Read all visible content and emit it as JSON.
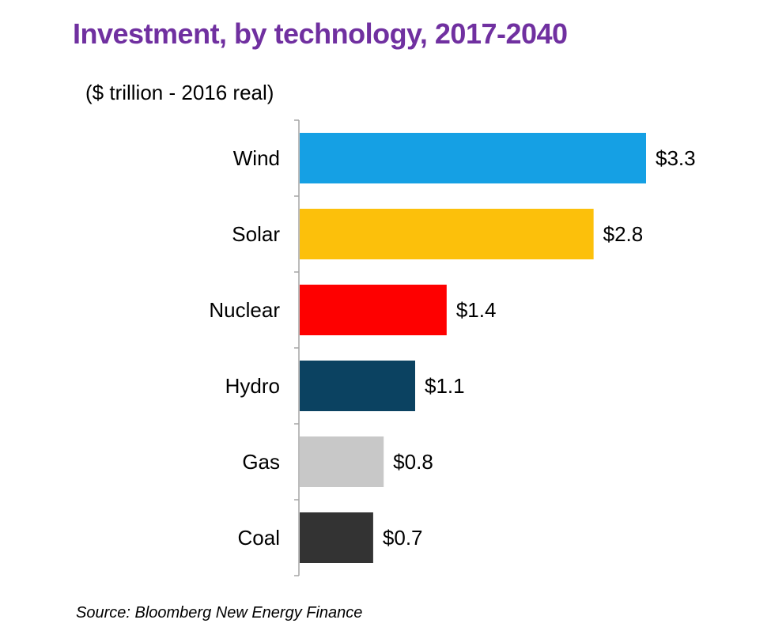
{
  "title_color": "#7030a0",
  "chart_data": {
    "type": "bar",
    "orientation": "horizontal",
    "title": "Investment, by technology, 2017-2040",
    "unit_label": "($ trillion - 2016 real)",
    "categories": [
      "Wind",
      "Solar",
      "Nuclear",
      "Hydro",
      "Gas",
      "Coal"
    ],
    "values": [
      3.3,
      2.8,
      1.4,
      1.1,
      0.8,
      0.7
    ],
    "value_labels": [
      "$3.3",
      "$2.8",
      "$1.4",
      "$1.1",
      "$0.8",
      "$0.7"
    ],
    "colors": [
      "#15a0e4",
      "#fcc00b",
      "#fe0000",
      "#0b4261",
      "#c8c8c8",
      "#333333"
    ],
    "xlim": [
      0,
      3.3
    ],
    "grid": false,
    "legend": "none"
  },
  "source": "Source: Bloomberg New Energy Finance"
}
